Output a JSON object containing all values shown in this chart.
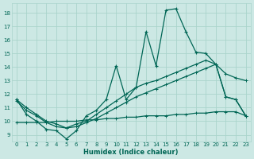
{
  "xlabel": "Humidex (Indice chaleur)",
  "bg_color": "#cce8e4",
  "grid_color": "#aad4cc",
  "line_color": "#006655",
  "xlim": [
    -0.5,
    23.5
  ],
  "ylim": [
    8.5,
    18.7
  ],
  "xticks": [
    0,
    1,
    2,
    3,
    4,
    5,
    6,
    7,
    8,
    9,
    10,
    11,
    12,
    13,
    14,
    15,
    16,
    17,
    18,
    19,
    20,
    21,
    22,
    23
  ],
  "yticks": [
    9,
    10,
    11,
    12,
    13,
    14,
    15,
    16,
    17,
    18
  ],
  "curve1_x": [
    0,
    1,
    2,
    3,
    4,
    5,
    6,
    7,
    8,
    9,
    10,
    11,
    12,
    13,
    14,
    15,
    16,
    17,
    18,
    19,
    20,
    21,
    22,
    23
  ],
  "curve1_y": [
    11.6,
    10.5,
    10.0,
    9.4,
    9.3,
    8.7,
    9.3,
    10.4,
    10.8,
    11.6,
    14.1,
    11.6,
    12.5,
    16.6,
    14.1,
    18.2,
    18.3,
    16.6,
    15.1,
    15.0,
    14.2,
    11.8,
    11.6,
    10.4
  ],
  "curve2_x": [
    0,
    1,
    2,
    3,
    4,
    5,
    6,
    7,
    8,
    9,
    10,
    11,
    12,
    13,
    14,
    15,
    16,
    17,
    18,
    19,
    20,
    21,
    22,
    23
  ],
  "curve2_y": [
    11.6,
    11.0,
    10.5,
    10.0,
    9.8,
    9.5,
    9.8,
    10.0,
    10.5,
    11.0,
    11.5,
    12.0,
    12.5,
    12.8,
    13.0,
    13.3,
    13.6,
    13.9,
    14.2,
    14.5,
    14.2,
    11.8,
    11.6,
    10.4
  ],
  "curve3_x": [
    0,
    1,
    2,
    3,
    4,
    5,
    6,
    7,
    8,
    9,
    10,
    11,
    12,
    13,
    14,
    15,
    16,
    17,
    18,
    19,
    20,
    21,
    22,
    23
  ],
  "curve3_y": [
    11.5,
    10.8,
    10.4,
    9.9,
    9.6,
    9.5,
    9.6,
    9.9,
    10.2,
    10.6,
    11.0,
    11.4,
    11.8,
    12.1,
    12.4,
    12.7,
    13.0,
    13.3,
    13.6,
    13.9,
    14.2,
    13.5,
    13.2,
    13.0
  ],
  "curve4_x": [
    0,
    1,
    2,
    3,
    4,
    5,
    6,
    7,
    8,
    9,
    10,
    11,
    12,
    13,
    14,
    15,
    16,
    17,
    18,
    19,
    20,
    21,
    22,
    23
  ],
  "curve4_y": [
    9.9,
    9.9,
    9.9,
    9.9,
    10.0,
    10.0,
    10.0,
    10.1,
    10.1,
    10.2,
    10.2,
    10.3,
    10.3,
    10.4,
    10.4,
    10.4,
    10.5,
    10.5,
    10.6,
    10.6,
    10.7,
    10.7,
    10.7,
    10.4
  ]
}
